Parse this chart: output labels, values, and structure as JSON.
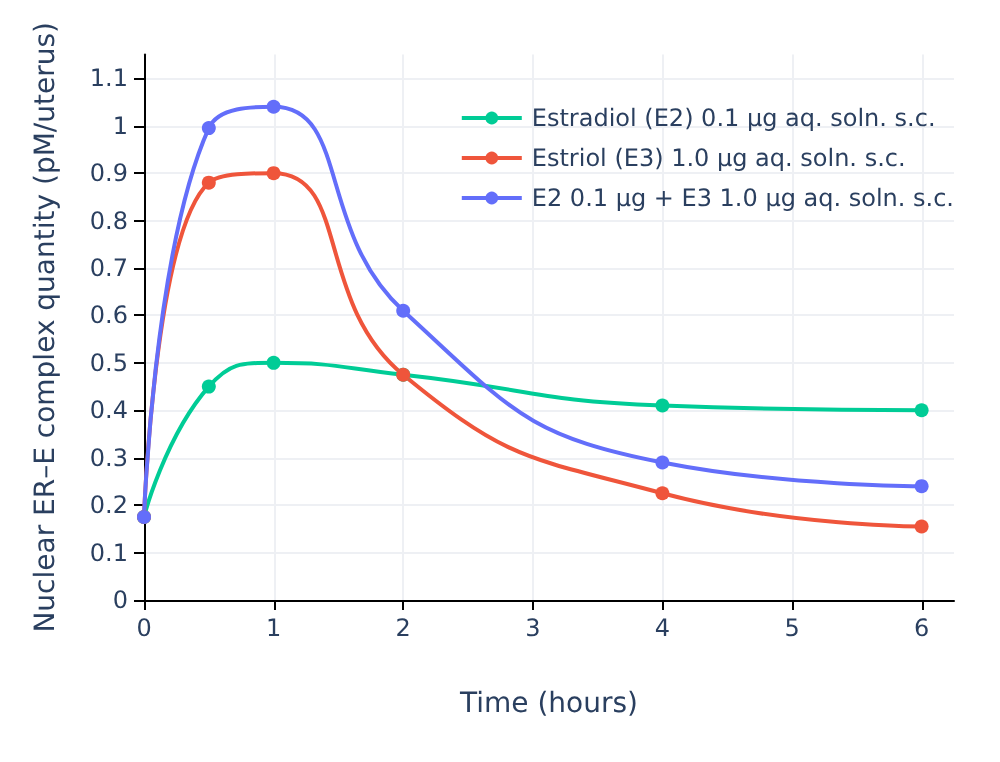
{
  "chart_data": {
    "type": "line",
    "xlabel": "Time (hours)",
    "ylabel": "Nuclear ER–E complex quantity (pM/uterus)",
    "x": [
      0,
      0.5,
      1,
      2,
      4,
      6
    ],
    "series": [
      {
        "name": "Estradiol (E2) 0.1 μg aq. soln. s.c.",
        "color": "#00cc96",
        "values": [
          0.175,
          0.45,
          0.5,
          0.475,
          0.41,
          0.4
        ]
      },
      {
        "name": "Estriol (E3) 1.0 μg aq. soln. s.c.",
        "color": "#ef553b",
        "values": [
          0.175,
          0.88,
          0.9,
          0.475,
          0.225,
          0.155
        ]
      },
      {
        "name": "E2 0.1 μg + E3 1.0 μg aq. soln. s.c.",
        "color": "#636efa",
        "values": [
          0.175,
          0.995,
          1.04,
          0.61,
          0.29,
          0.24
        ]
      }
    ],
    "xlim": [
      0,
      6.25
    ],
    "xticks": [
      0,
      1,
      2,
      3,
      4,
      5,
      6
    ],
    "ylim": [
      0,
      1.15
    ],
    "yticks": [
      0,
      0.1,
      0.2,
      0.3,
      0.4,
      0.5,
      0.6,
      0.7,
      0.8,
      0.9,
      1,
      1.1
    ],
    "grid": true,
    "legend": "top right",
    "marker": "circle",
    "line_style": "solid"
  }
}
